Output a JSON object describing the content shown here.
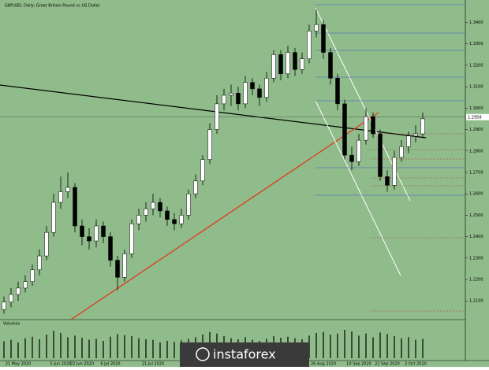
{
  "chart_data": {
    "type": "candlestick",
    "title": "GBPUSD, Daily: Great Britain Pound vs US Dollar",
    "categories": [
      null,
      null,
      "21 May 2020",
      null,
      null,
      null,
      null,
      null,
      "5 Jun 2020",
      null,
      null,
      "22 Jun 2020",
      null,
      null,
      null,
      "6 Jul 2020",
      null,
      null,
      null,
      null,
      null,
      "21 Jul 2020",
      null,
      null,
      null,
      null,
      null,
      null,
      null,
      null,
      null,
      null,
      null,
      null,
      null,
      null,
      null,
      null,
      null,
      null,
      null,
      null,
      null,
      null,
      null,
      "26 Aug 2020",
      null,
      null,
      null,
      null,
      "10 Sep 2020",
      null,
      null,
      null,
      "22 Sep 2020",
      null,
      null,
      null,
      "2 Oct 2020",
      null
    ],
    "open": [
      1.206,
      1.2095,
      1.213,
      1.216,
      1.219,
      1.2245,
      1.231,
      1.242,
      1.256,
      1.261,
      1.263,
      1.245,
      1.24,
      1.238,
      1.245,
      1.24,
      1.229,
      1.221,
      1.232,
      1.246,
      1.25,
      1.253,
      1.256,
      1.252,
      1.248,
      1.246,
      1.25,
      1.26,
      1.266,
      1.276,
      1.29,
      1.302,
      1.306,
      1.307,
      1.302,
      1.312,
      1.309,
      1.305,
      1.314,
      1.325,
      1.316,
      1.326,
      1.318,
      1.323,
      1.336,
      1.339,
      1.326,
      1.314,
      1.302,
      1.278,
      1.275,
      1.285,
      1.296,
      1.288,
      1.268,
      1.264,
      1.277,
      1.282,
      1.287,
      1.288
    ],
    "high": [
      1.212,
      1.216,
      1.219,
      1.222,
      1.227,
      1.234,
      1.245,
      1.26,
      1.268,
      1.27,
      1.265,
      1.248,
      1.244,
      1.248,
      1.247,
      1.242,
      1.231,
      1.234,
      1.248,
      1.253,
      1.256,
      1.26,
      1.258,
      1.254,
      1.251,
      1.253,
      1.262,
      1.269,
      1.278,
      1.293,
      1.306,
      1.309,
      1.311,
      1.31,
      1.315,
      1.314,
      1.311,
      1.317,
      1.327,
      1.327,
      1.329,
      1.328,
      1.326,
      1.339,
      1.346,
      1.341,
      1.328,
      1.316,
      1.304,
      1.282,
      1.288,
      1.3,
      1.298,
      1.29,
      1.271,
      1.28,
      1.285,
      1.289,
      1.292,
      1.298
    ],
    "low": [
      1.204,
      1.207,
      1.21,
      1.214,
      1.217,
      1.222,
      1.229,
      1.24,
      1.253,
      1.258,
      1.242,
      1.236,
      1.234,
      1.235,
      1.237,
      1.226,
      1.215,
      1.219,
      1.23,
      1.243,
      1.247,
      1.25,
      1.249,
      1.245,
      1.243,
      1.244,
      1.248,
      1.258,
      1.264,
      1.274,
      1.288,
      1.299,
      1.301,
      1.299,
      1.3,
      1.306,
      1.301,
      1.303,
      1.312,
      1.313,
      1.314,
      1.315,
      1.316,
      1.321,
      1.333,
      1.323,
      1.311,
      1.299,
      1.276,
      1.271,
      1.273,
      1.283,
      1.286,
      1.266,
      1.261,
      1.262,
      1.275,
      1.279,
      1.284,
      1.286
    ],
    "close": [
      1.2095,
      1.213,
      1.216,
      1.219,
      1.2245,
      1.231,
      1.242,
      1.256,
      1.261,
      1.263,
      1.245,
      1.24,
      1.238,
      1.245,
      1.24,
      1.229,
      1.221,
      1.232,
      1.246,
      1.25,
      1.253,
      1.256,
      1.252,
      1.248,
      1.246,
      1.25,
      1.26,
      1.266,
      1.276,
      1.29,
      1.302,
      1.306,
      1.307,
      1.302,
      1.312,
      1.309,
      1.305,
      1.314,
      1.325,
      1.316,
      1.326,
      1.318,
      1.323,
      1.336,
      1.339,
      1.326,
      1.314,
      1.302,
      1.278,
      1.275,
      1.285,
      1.296,
      1.288,
      1.268,
      1.264,
      1.277,
      1.282,
      1.287,
      1.288,
      1.295
    ],
    "ylim": [
      1.202,
      1.349
    ],
    "yticks": [
      {
        "value": 1.21,
        "label": "1.2100"
      },
      {
        "value": 1.22,
        "label": "1.2200"
      },
      {
        "value": 1.23,
        "label": "1.2300"
      },
      {
        "value": 1.24,
        "label": "1.2400"
      },
      {
        "value": 1.25,
        "label": "1.2500"
      },
      {
        "value": 1.26,
        "label": "1.2600"
      },
      {
        "value": 1.27,
        "label": "1.2700"
      },
      {
        "value": 1.28,
        "label": "1.2800"
      },
      {
        "value": 1.29,
        "label": "1.2900"
      },
      {
        "value": 1.3,
        "label": "1.3000"
      },
      {
        "value": 1.31,
        "label": "1.3100"
      },
      {
        "value": 1.32,
        "label": "1.3200"
      },
      {
        "value": 1.33,
        "label": "1.3300"
      },
      {
        "value": 1.34,
        "label": "1.3400"
      }
    ],
    "current_price": {
      "value": 1.2958,
      "label": "1.2958"
    },
    "volume_title": "Volumes",
    "volumes": [
      320,
      350,
      300,
      380,
      410,
      360,
      450,
      520,
      480,
      400,
      430,
      390,
      350,
      370,
      330,
      410,
      460,
      440,
      420,
      380,
      360,
      350,
      300,
      330,
      310,
      340,
      370,
      400,
      450,
      500,
      470,
      420,
      380,
      360,
      400,
      350,
      330,
      370,
      420,
      390,
      410,
      380,
      360,
      430,
      480,
      500,
      450,
      470,
      540,
      510,
      430,
      470,
      400,
      490,
      460,
      420,
      380,
      400,
      350,
      370
    ],
    "volume_ylim": [
      0,
      600
    ],
    "up_color": "#ffffff",
    "down_color": "#000000",
    "logo": "instaforex"
  }
}
